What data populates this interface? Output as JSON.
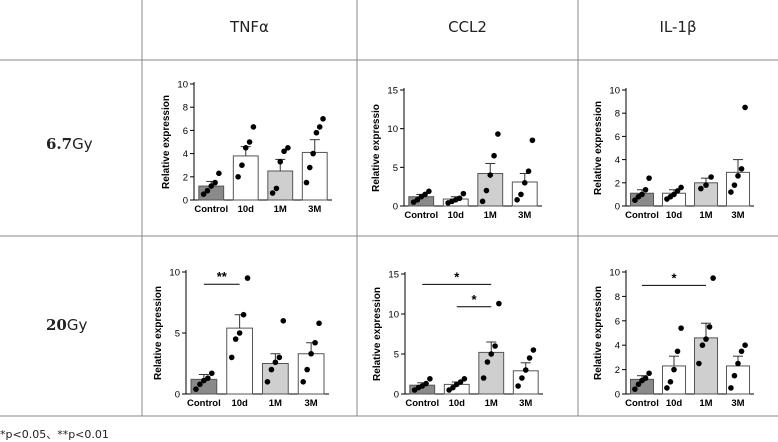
{
  "columns": [
    "TNFα",
    "CCL2",
    "IL-1β"
  ],
  "rows": [
    {
      "dose_value": "6.7",
      "dose_unit": "Gy"
    },
    {
      "dose_value": "20",
      "dose_unit": "Gy"
    }
  ],
  "footnote": "*p<0.05、**p<0.01",
  "colors": {
    "bar_fills": [
      "#8a8a8a",
      "#ffffff",
      "#cfcfcf",
      "#ffffff"
    ],
    "border": "#555555"
  },
  "chart_data": [
    {
      "id": "r1c1",
      "type": "bar",
      "row": "6.7Gy",
      "column": "TNFα",
      "ylabel": "Relative expression",
      "categories": [
        "Control",
        "10d",
        "1M",
        "3M"
      ],
      "ylim": [
        0,
        10
      ],
      "yticks": [
        0,
        2,
        4,
        6,
        8,
        10
      ],
      "values": [
        1.2,
        3.8,
        2.5,
        4.1
      ],
      "errors": [
        0.4,
        0.8,
        1.0,
        1.1
      ],
      "points": [
        [
          0.5,
          0.8,
          1.2,
          1.5,
          2.3
        ],
        [
          2.0,
          3.0,
          4.5,
          5.0,
          6.3
        ],
        [
          0.6,
          1.0,
          3.3,
          4.2,
          4.5
        ],
        [
          1.5,
          2.8,
          4.0,
          5.8,
          6.3,
          7.0
        ]
      ],
      "significance": []
    },
    {
      "id": "r1c2",
      "type": "bar",
      "row": "6.7Gy",
      "column": "CCL2",
      "ylabel": "Relative expressio",
      "categories": [
        "Control",
        "10d",
        "1M",
        "3M"
      ],
      "ylim": [
        0,
        15
      ],
      "yticks": [
        0,
        5,
        10,
        15
      ],
      "values": [
        1.2,
        0.9,
        4.2,
        3.1
      ],
      "errors": [
        0.3,
        0.3,
        1.3,
        1.1
      ],
      "points": [
        [
          0.5,
          0.8,
          1.2,
          1.5,
          1.9
        ],
        [
          0.4,
          0.6,
          0.8,
          1.0,
          1.6
        ],
        [
          0.6,
          2.0,
          4.0,
          6.5,
          9.3
        ],
        [
          0.8,
          1.5,
          3.0,
          4.5,
          8.5
        ]
      ],
      "significance": []
    },
    {
      "id": "r1c3",
      "type": "bar",
      "row": "6.7Gy",
      "column": "IL-1β",
      "ylabel": "Relative expression",
      "categories": [
        "Control",
        "10d",
        "1M",
        "3M"
      ],
      "ylim": [
        0,
        10
      ],
      "yticks": [
        0,
        2,
        4,
        6,
        8,
        10
      ],
      "values": [
        1.1,
        1.1,
        2.0,
        2.9
      ],
      "errors": [
        0.3,
        0.3,
        0.4,
        1.1
      ],
      "points": [
        [
          0.5,
          0.8,
          1.0,
          1.4,
          2.4
        ],
        [
          0.6,
          0.8,
          1.0,
          1.3,
          1.6
        ],
        [
          1.5,
          1.8,
          2.5
        ],
        [
          1.2,
          1.8,
          2.6,
          3.2,
          8.5
        ]
      ],
      "significance": []
    },
    {
      "id": "r2c1",
      "type": "bar",
      "row": "20Gy",
      "column": "TNFα",
      "ylabel": "Relative expression",
      "categories": [
        "Control",
        "10d",
        "1M",
        "3M"
      ],
      "ylim": [
        0,
        10
      ],
      "yticks": [
        0,
        5,
        10
      ],
      "values": [
        1.2,
        5.4,
        2.5,
        3.3
      ],
      "errors": [
        0.4,
        1.1,
        0.8,
        0.9
      ],
      "points": [
        [
          0.4,
          0.8,
          1.1,
          1.3,
          1.7
        ],
        [
          3.0,
          4.5,
          5.0,
          6.5,
          9.5
        ],
        [
          1.0,
          2.0,
          2.6,
          3.0,
          6.0
        ],
        [
          1.0,
          2.0,
          3.3,
          4.2,
          5.8
        ]
      ],
      "significance": [
        {
          "label": "**",
          "from": 0,
          "to": 1,
          "y": 9.0
        }
      ]
    },
    {
      "id": "r2c2",
      "type": "bar",
      "row": "20Gy",
      "column": "CCL2",
      "ylabel": "Relative expression",
      "categories": [
        "Control",
        "10d",
        "1M",
        "3M"
      ],
      "ylim": [
        0,
        15
      ],
      "yticks": [
        0,
        5,
        10,
        15
      ],
      "values": [
        1.1,
        1.2,
        5.2,
        2.9
      ],
      "errors": [
        0.3,
        0.3,
        1.3,
        1.0
      ],
      "points": [
        [
          0.5,
          0.8,
          1.0,
          1.3,
          1.9
        ],
        [
          0.5,
          0.8,
          1.2,
          1.5,
          1.9
        ],
        [
          2.0,
          4.0,
          5.0,
          6.0,
          11.3
        ],
        [
          1.0,
          2.0,
          3.0,
          4.5,
          5.5
        ]
      ],
      "significance": [
        {
          "label": "*",
          "from": 0,
          "to": 2,
          "y": 13.7
        },
        {
          "label": "*",
          "from": 1,
          "to": 2,
          "y": 10.9
        }
      ]
    },
    {
      "id": "r2c3",
      "type": "bar",
      "row": "20Gy",
      "column": "IL-1β",
      "ylabel": "Relative expression",
      "categories": [
        "Control",
        "10d",
        "1M",
        "3M"
      ],
      "ylim": [
        0,
        10
      ],
      "yticks": [
        0,
        2,
        4,
        6,
        8,
        10
      ],
      "values": [
        1.2,
        2.3,
        4.6,
        2.3
      ],
      "errors": [
        0.3,
        0.8,
        1.2,
        0.8
      ],
      "points": [
        [
          0.4,
          0.8,
          1.1,
          1.3,
          1.7
        ],
        [
          0.5,
          1.0,
          2.0,
          3.5,
          5.4
        ],
        [
          2.5,
          4.0,
          4.5,
          5.5,
          9.5
        ],
        [
          0.5,
          1.5,
          2.5,
          3.5,
          4.0
        ]
      ],
      "significance": [
        {
          "label": "*",
          "from": 0,
          "to": 2,
          "y": 8.9
        }
      ]
    }
  ]
}
